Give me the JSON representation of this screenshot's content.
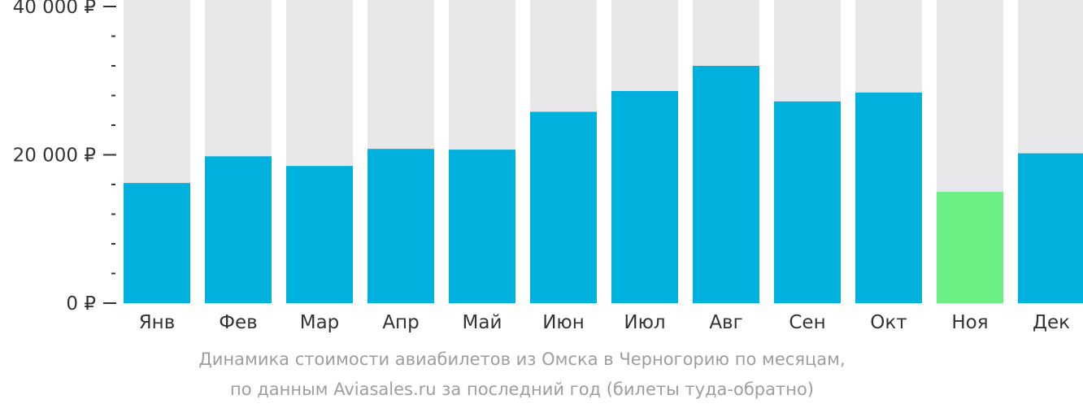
{
  "chart_data": {
    "type": "bar",
    "categories": [
      "Янв",
      "Фев",
      "Мар",
      "Апр",
      "Май",
      "Июн",
      "Июл",
      "Авг",
      "Сен",
      "Окт",
      "Ноя",
      "Дек"
    ],
    "values": [
      16200,
      19800,
      18500,
      20800,
      20700,
      25800,
      28600,
      32000,
      27200,
      28400,
      15000,
      20200
    ],
    "highlight_index": 10,
    "ylim": [
      0,
      40000
    ],
    "yticks": [
      {
        "value": 0,
        "label": "0 ₽"
      },
      {
        "value": 20000,
        "label": "20 000 ₽"
      },
      {
        "value": 40000,
        "label": "40 000 ₽"
      }
    ],
    "minor_tick_step": 4000,
    "title": "",
    "xlabel": "",
    "ylabel": ""
  },
  "colors": {
    "bar": "#00b0dd",
    "highlight": "#6aef85",
    "background_bar": "#e8e8ea",
    "axis": "#333333",
    "caption": "#9e9e9e"
  },
  "caption": {
    "line1": "Динамика стоимости авиабилетов из Омска в Черногорию по месяцам,",
    "line2": "по данным Aviasales.ru за последний год (билеты туда-обратно)"
  }
}
